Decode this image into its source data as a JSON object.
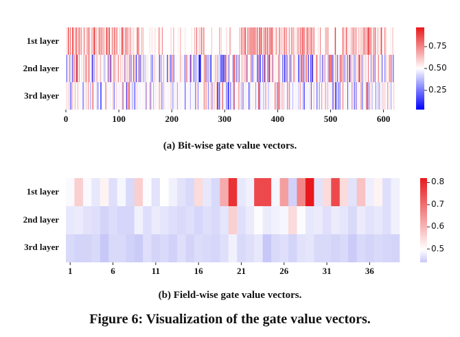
{
  "chart_data": [
    {
      "type": "heatmap",
      "rows": [
        "1st layer",
        "2nd layer",
        "3rd layer"
      ],
      "xticks": [
        0,
        100,
        200,
        300,
        400,
        500,
        600
      ],
      "xlim": [
        0,
        620
      ],
      "colorbar": {
        "ticks": [
          "0.25",
          "0.50",
          "0.75"
        ],
        "range": [
          0.03,
          0.97
        ]
      },
      "colormap": {
        "low": "#0000ff",
        "mid": "#ffffff",
        "high": "#e8191c"
      },
      "caption": "(a) Bit-wise gate value vectors."
    },
    {
      "type": "heatmap",
      "rows": [
        "1st layer",
        "2nd layer",
        "3rd layer"
      ],
      "xticks": [
        1,
        6,
        11,
        16,
        21,
        26,
        31,
        36
      ],
      "n_fields": 39,
      "colorbar": {
        "ticks": [
          "0.5",
          "0.6",
          "0.7",
          "0.8"
        ],
        "range": [
          0.44,
          0.82
        ]
      },
      "colormap": {
        "low": "#c8c8f8",
        "mid": "#ffffff",
        "high": "#e8191c"
      },
      "values": [
        [
          0.61,
          0.67,
          0.61,
          0.55,
          0.64,
          0.52,
          0.6,
          0.5,
          0.67,
          0.62,
          0.53,
          0.63,
          0.58,
          0.53,
          0.5,
          0.66,
          0.55,
          0.5,
          0.7,
          0.8,
          0.55,
          0.58,
          0.78,
          0.78,
          0.6,
          0.71,
          0.47,
          0.73,
          0.82,
          0.53,
          0.66,
          0.78,
          0.66,
          0.53,
          0.68,
          0.57,
          0.64,
          0.52,
          0.58
        ],
        [
          0.55,
          0.56,
          0.53,
          0.52,
          0.48,
          0.51,
          0.49,
          0.49,
          0.58,
          0.52,
          0.56,
          0.54,
          0.52,
          0.5,
          0.52,
          0.49,
          0.52,
          0.5,
          0.54,
          0.67,
          0.52,
          0.56,
          0.62,
          0.56,
          0.58,
          0.6,
          0.66,
          0.62,
          0.55,
          0.56,
          0.52,
          0.56,
          0.54,
          0.5,
          0.56,
          0.53,
          0.55,
          0.52,
          0.58
        ],
        [
          0.5,
          0.48,
          0.48,
          0.5,
          0.44,
          0.5,
          0.5,
          0.47,
          0.45,
          0.52,
          0.48,
          0.5,
          0.47,
          0.52,
          0.48,
          0.51,
          0.5,
          0.49,
          0.52,
          0.58,
          0.5,
          0.52,
          0.55,
          0.44,
          0.5,
          0.52,
          0.48,
          0.53,
          0.54,
          0.5,
          0.5,
          0.48,
          0.5,
          0.45,
          0.5,
          0.48,
          0.5,
          0.49,
          0.48
        ]
      ],
      "caption": "(b) Field-wise gate value vectors."
    }
  ],
  "figure_title": "Figure 6: Visualization of the gate value vectors."
}
